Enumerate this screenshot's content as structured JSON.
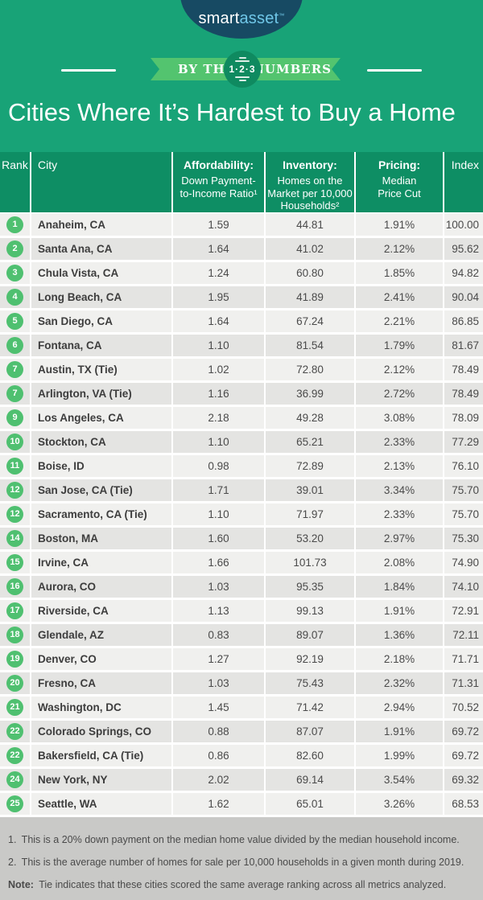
{
  "colors": {
    "page_green": "#18a377",
    "table_header_green": "#0e8e64",
    "ribbon_green": "#53c46f",
    "badge_green": "#0f8a60",
    "rank_circle_green": "#4fc070",
    "logo_navy": "#174a63",
    "logo_blue": "#70c7e8",
    "row_light": "#f0f0ee",
    "row_dark": "#e4e4e2",
    "footer_gray": "#c9c9c7",
    "body_text": "#4a4a4a"
  },
  "brand": {
    "smart": "smart",
    "asset": "asset",
    "tm": "™"
  },
  "banner": {
    "left": "BY THE",
    "badge": "1·2·3",
    "right": "NUMBERS"
  },
  "title": "Cities Where It’s Hardest to Buy a Home",
  "table_headers": {
    "rank": "Rank",
    "city": "City",
    "affordability": {
      "label": "Affordability:",
      "lines": [
        "Down Payment-",
        "to-Income Ratio¹"
      ]
    },
    "inventory": {
      "label": "Inventory:",
      "lines": [
        "Homes on the",
        "Market per 10,000",
        "Households²"
      ]
    },
    "pricing": {
      "label": "Pricing:",
      "lines": [
        "Median",
        "Price Cut"
      ]
    },
    "index": "Index"
  },
  "chart_data": {
    "type": "table",
    "title": "Cities Where It’s Hardest to Buy a Home",
    "columns": [
      "Rank",
      "City",
      "Affordability: Down Payment-to-Income Ratio",
      "Inventory: Homes on the Market per 10,000 Households",
      "Pricing: Median Price Cut",
      "Index"
    ],
    "rows": [
      [
        "1",
        "Anaheim, CA",
        "1.59",
        "44.81",
        "1.91%",
        "100.00"
      ],
      [
        "2",
        "Santa Ana, CA",
        "1.64",
        "41.02",
        "2.12%",
        "95.62"
      ],
      [
        "3",
        "Chula Vista, CA",
        "1.24",
        "60.80",
        "1.85%",
        "94.82"
      ],
      [
        "4",
        "Long Beach, CA",
        "1.95",
        "41.89",
        "2.41%",
        "90.04"
      ],
      [
        "5",
        "San Diego, CA",
        "1.64",
        "67.24",
        "2.21%",
        "86.85"
      ],
      [
        "6",
        "Fontana, CA",
        "1.10",
        "81.54",
        "1.79%",
        "81.67"
      ],
      [
        "7",
        "Austin, TX (Tie)",
        "1.02",
        "72.80",
        "2.12%",
        "78.49"
      ],
      [
        "7",
        "Arlington, VA (Tie)",
        "1.16",
        "36.99",
        "2.72%",
        "78.49"
      ],
      [
        "9",
        "Los Angeles, CA",
        "2.18",
        "49.28",
        "3.08%",
        "78.09"
      ],
      [
        "10",
        "Stockton, CA",
        "1.10",
        "65.21",
        "2.33%",
        "77.29"
      ],
      [
        "11",
        "Boise, ID",
        "0.98",
        "72.89",
        "2.13%",
        "76.10"
      ],
      [
        "12",
        "San Jose, CA (Tie)",
        "1.71",
        "39.01",
        "3.34%",
        "75.70"
      ],
      [
        "12",
        "Sacramento, CA (Tie)",
        "1.10",
        "71.97",
        "2.33%",
        "75.70"
      ],
      [
        "14",
        "Boston, MA",
        "1.60",
        "53.20",
        "2.97%",
        "75.30"
      ],
      [
        "15",
        "Irvine, CA",
        "1.66",
        "101.73",
        "2.08%",
        "74.90"
      ],
      [
        "16",
        "Aurora, CO",
        "1.03",
        "95.35",
        "1.84%",
        "74.10"
      ],
      [
        "17",
        "Riverside, CA",
        "1.13",
        "99.13",
        "1.91%",
        "72.91"
      ],
      [
        "18",
        "Glendale, AZ",
        "0.83",
        "89.07",
        "1.36%",
        "72.11"
      ],
      [
        "19",
        "Denver, CO",
        "1.27",
        "92.19",
        "2.18%",
        "71.71"
      ],
      [
        "20",
        "Fresno, CA",
        "1.03",
        "75.43",
        "2.32%",
        "71.31"
      ],
      [
        "21",
        "Washington, DC",
        "1.45",
        "71.42",
        "2.94%",
        "70.52"
      ],
      [
        "22",
        "Colorado Springs, CO (Tie)",
        "0.88",
        "87.07",
        "1.91%",
        "69.72"
      ],
      [
        "22",
        "Bakersfield, CA (Tie)",
        "0.86",
        "82.60",
        "1.99%",
        "69.72"
      ],
      [
        "24",
        "New York, NY",
        "2.02",
        "69.14",
        "3.54%",
        "69.32"
      ],
      [
        "25",
        "Seattle, WA",
        "1.62",
        "65.01",
        "3.26%",
        "68.53"
      ]
    ]
  },
  "footnotes": [
    {
      "prefix": "1.",
      "bold_prefix": false,
      "text": "This is a 20% down payment on the median home value divided by the median household income."
    },
    {
      "prefix": "2.",
      "bold_prefix": false,
      "text": "This is the average number of homes for sale per 10,000 households in a given month during 2019."
    },
    {
      "prefix": "Note:",
      "bold_prefix": true,
      "text": "Tie indicates that these cities scored the same average ranking across all metrics analyzed."
    }
  ]
}
